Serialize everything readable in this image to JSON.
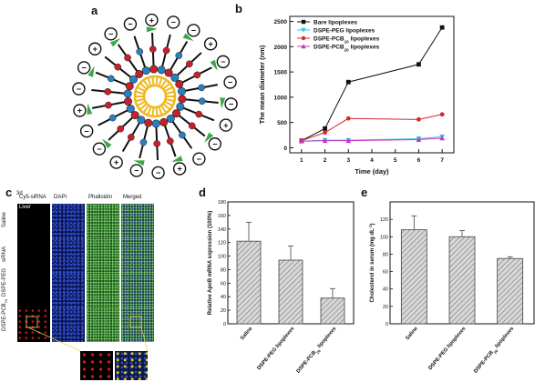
{
  "panel_letters": {
    "a": "a",
    "b": "b",
    "c": "c",
    "d": "d",
    "e": "e"
  },
  "colors": {
    "black": "#111111",
    "cyan": "#35c7d6",
    "red": "#d42a2a",
    "magenta": "#c833c8",
    "blue_dapi": "#2846b4",
    "green_phalloidin": "#3fa33a",
    "headgroup_yellow": "#f0b820",
    "bead_red": "#c8202a",
    "bead_blue": "#2a7fc0",
    "peg_green": "#3aa848"
  },
  "panel_a": {
    "charge_plus": "+",
    "charge_minus": "−"
  },
  "panel_c": {
    "time_label": "3d",
    "tissue_label": "Liver",
    "columns": [
      "Cy5-siRNA",
      "DAPI",
      "Phalloidin",
      "Merged"
    ],
    "rows": [
      "Saline",
      "siRNA",
      "DSPE-PEG",
      "DSPE-PCB"
    ],
    "row_subscript": "20"
  },
  "chart_data": [
    {
      "type": "line",
      "panel": "b",
      "xlabel": "Time (day)",
      "ylabel": "The mean diameter (nm)",
      "xlim": [
        0.5,
        7.5
      ],
      "ylim": [
        -100,
        2600
      ],
      "xticks": [
        1,
        2,
        3,
        4,
        5,
        6,
        7
      ],
      "yticks": [
        0,
        500,
        1000,
        1500,
        2000,
        2500
      ],
      "legend_position": "top-left",
      "series": [
        {
          "name": "Bare lipoplexes",
          "x": [
            1,
            2,
            3,
            6,
            7
          ],
          "y": [
            140,
            380,
            1300,
            1650,
            2380
          ],
          "color": "#111111",
          "marker": "square",
          "error": [
            0,
            20,
            0,
            0,
            0
          ]
        },
        {
          "name": "DSPE-PEG lipoplexes",
          "x": [
            1,
            2,
            3,
            6,
            7
          ],
          "y": [
            130,
            150,
            150,
            180,
            220
          ],
          "color": "#35c7d6",
          "marker": "triangle-down",
          "error": [
            0,
            0,
            0,
            0,
            0
          ]
        },
        {
          "name": "DSPE-PCB",
          "name_sub": "10",
          "name_suffix": " lipoplexes",
          "x": [
            1,
            2,
            3,
            6,
            7
          ],
          "y": [
            140,
            300,
            580,
            560,
            660
          ],
          "color": "#d42a2a",
          "marker": "circle",
          "error": [
            0,
            0,
            0,
            0,
            0
          ]
        },
        {
          "name": "DSPE-PCB",
          "name_sub": "20",
          "name_suffix": " lipoplexes",
          "x": [
            1,
            2,
            3,
            6,
            7
          ],
          "y": [
            130,
            140,
            140,
            160,
            190
          ],
          "color": "#c833c8",
          "marker": "triangle-up",
          "error": [
            0,
            0,
            0,
            0,
            0
          ]
        }
      ]
    },
    {
      "type": "bar",
      "panel": "d",
      "ylabel": "Relative ApoB mRNA expression (100%)",
      "ylim": [
        0,
        180
      ],
      "yticks": [
        0,
        20,
        40,
        60,
        80,
        100,
        120,
        140,
        160,
        180
      ],
      "categories": [
        {
          "label": "Saline"
        },
        {
          "label": "DSPE-PEG lipoplexes"
        },
        {
          "label": "DSPE-PCB",
          "sub": "20",
          "suffix": " lipoplexes"
        }
      ],
      "values": [
        122,
        94,
        38
      ],
      "errors": [
        28,
        21,
        14
      ]
    },
    {
      "type": "bar",
      "panel": "e",
      "ylabel": "Cholesterol in serum (mg dL",
      "ylabel_sup": "-1",
      "ylabel_suffix": ")",
      "ylim": [
        0,
        140
      ],
      "yticks": [
        0,
        20,
        40,
        60,
        80,
        100,
        120
      ],
      "categories": [
        {
          "label": "Saline"
        },
        {
          "label": "DSPE-PEG lipoplexes"
        },
        {
          "label": "DSPE-PCB",
          "sub": "20",
          "suffix": " lipoplexes"
        }
      ],
      "values": [
        108,
        100,
        75
      ],
      "errors": [
        16,
        7,
        2
      ]
    }
  ]
}
